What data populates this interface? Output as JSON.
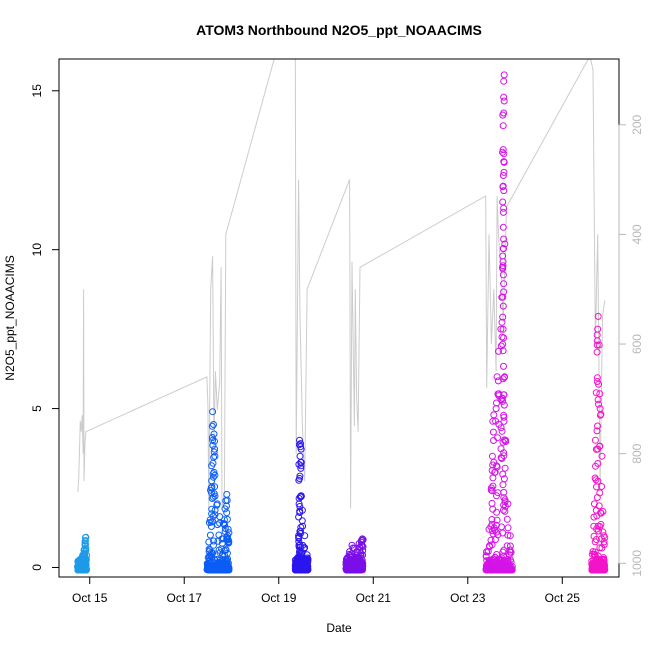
{
  "chart_data": {
    "type": "scatter",
    "title": "ATOM3 Northbound N2O5_ppt_NOAACIMS",
    "xlabel": "Date",
    "ylabel": "N2O5_ppt_NOAACIMS",
    "x_ticks": [
      {
        "day": 15,
        "label": "Oct 15"
      },
      {
        "day": 17,
        "label": "Oct 17"
      },
      {
        "day": 19,
        "label": "Oct 19"
      },
      {
        "day": 21,
        "label": "Oct 21"
      },
      {
        "day": 23,
        "label": "Oct 23"
      },
      {
        "day": 25,
        "label": "Oct 25"
      }
    ],
    "xlim": [
      14.35,
      26.2
    ],
    "ylim": [
      -0.3,
      16.0
    ],
    "y_ticks": [
      0,
      5,
      10,
      15
    ],
    "y2_ticks": [
      200,
      400,
      600,
      800,
      1000
    ],
    "y2lim": [
      1025,
      80
    ],
    "grid": false,
    "series": [
      {
        "color": "#1e9be8",
        "x_range": [
          14.75,
          14.93
        ],
        "points": [
          [
            14.76,
            0.05
          ],
          [
            14.78,
            0.1
          ],
          [
            14.8,
            0.2
          ],
          [
            14.82,
            0.15
          ],
          [
            14.84,
            0.3
          ],
          [
            14.86,
            0.4
          ],
          [
            14.88,
            0.55
          ],
          [
            14.9,
            0.7
          ],
          [
            14.91,
            0.85
          ],
          [
            14.92,
            0.95
          ],
          [
            14.8,
            0.0
          ],
          [
            14.85,
            0.25
          ]
        ]
      },
      {
        "color": "#0c5df5",
        "x_range": [
          17.48,
          17.95
        ],
        "points": [
          [
            17.5,
            0.1
          ],
          [
            17.52,
            0.8
          ],
          [
            17.55,
            1.5
          ],
          [
            17.57,
            2.5
          ],
          [
            17.58,
            3.2
          ],
          [
            17.6,
            4.0
          ],
          [
            17.62,
            4.5
          ],
          [
            17.6,
            4.9
          ],
          [
            17.63,
            4.2
          ],
          [
            17.65,
            3.5
          ],
          [
            17.7,
            2.0
          ],
          [
            17.75,
            1.6
          ],
          [
            17.85,
            1.5
          ],
          [
            17.88,
            2.1
          ],
          [
            17.9,
            2.3
          ],
          [
            17.92,
            1.0
          ],
          [
            17.8,
            0.9
          ],
          [
            17.93,
            1.2
          ]
        ]
      },
      {
        "color": "#2b16ef",
        "x_range": [
          19.35,
          19.62
        ],
        "points": [
          [
            19.4,
            0.3
          ],
          [
            19.42,
            1.0
          ],
          [
            19.43,
            2.0
          ],
          [
            19.44,
            2.8
          ],
          [
            19.45,
            3.5
          ],
          [
            19.46,
            3.8
          ],
          [
            19.44,
            4.0
          ],
          [
            19.47,
            3.2
          ],
          [
            19.5,
            1.8
          ],
          [
            19.55,
            1.0
          ],
          [
            19.6,
            0.4
          ]
        ]
      },
      {
        "color": "#7a0fe8",
        "x_range": [
          20.42,
          20.78
        ],
        "points": [
          [
            20.45,
            0.3
          ],
          [
            20.5,
            0.5
          ],
          [
            20.55,
            0.7
          ],
          [
            20.6,
            0.6
          ],
          [
            20.7,
            0.75
          ],
          [
            20.75,
            0.85
          ],
          [
            20.77,
            0.9
          ],
          [
            20.65,
            0.5
          ]
        ]
      },
      {
        "color": "#d414e6",
        "x_range": [
          23.38,
          23.95
        ],
        "points": [
          [
            23.4,
            0.5
          ],
          [
            23.45,
            1.2
          ],
          [
            23.5,
            2.5
          ],
          [
            23.52,
            3.5
          ],
          [
            23.53,
            4.6
          ],
          [
            23.55,
            4.8
          ],
          [
            23.58,
            3.0
          ],
          [
            23.6,
            5.0
          ],
          [
            23.62,
            6.0
          ],
          [
            23.65,
            6.8
          ],
          [
            23.7,
            7.5
          ],
          [
            23.72,
            8.5
          ],
          [
            23.74,
            9.4
          ],
          [
            23.74,
            9.8
          ],
          [
            23.74,
            11.5
          ],
          [
            23.75,
            12.0
          ],
          [
            23.75,
            13.15
          ],
          [
            23.75,
            13.9
          ],
          [
            23.76,
            14.3
          ],
          [
            23.76,
            14.8
          ],
          [
            23.76,
            15.3
          ],
          [
            23.77,
            15.5
          ],
          [
            23.8,
            4.0
          ],
          [
            23.85,
            2.0
          ],
          [
            23.9,
            1.0
          ]
        ]
      },
      {
        "color": "#f314c8",
        "x_range": [
          25.62,
          25.9
        ],
        "points": [
          [
            25.65,
            0.5
          ],
          [
            25.68,
            2.0
          ],
          [
            25.7,
            4.0
          ],
          [
            25.72,
            5.5
          ],
          [
            25.74,
            7.0
          ],
          [
            25.75,
            7.5
          ],
          [
            25.76,
            7.9
          ],
          [
            25.78,
            7.0
          ],
          [
            25.8,
            5.0
          ],
          [
            25.84,
            3.5
          ],
          [
            25.88,
            1.0
          ]
        ]
      }
    ],
    "secondary_line": {
      "color": "#cccccc",
      "points": [
        [
          14.75,
          870
        ],
        [
          14.77,
          840
        ],
        [
          14.8,
          740
        ],
        [
          14.82,
          760
        ],
        [
          14.84,
          730
        ],
        [
          14.86,
          800
        ],
        [
          14.87,
          500
        ],
        [
          14.88,
          850
        ],
        [
          14.9,
          780
        ],
        [
          14.92,
          760
        ],
        [
          17.48,
          660
        ],
        [
          17.5,
          710
        ],
        [
          17.52,
          900
        ],
        [
          17.56,
          500
        ],
        [
          17.6,
          440
        ],
        [
          17.63,
          780
        ],
        [
          17.66,
          650
        ],
        [
          17.7,
          720
        ],
        [
          17.75,
          670
        ],
        [
          17.78,
          460
        ],
        [
          17.8,
          900
        ],
        [
          17.85,
          870
        ],
        [
          17.88,
          400
        ],
        [
          19.0,
          50
        ],
        [
          19.35,
          50
        ],
        [
          19.37,
          800
        ],
        [
          19.42,
          300
        ],
        [
          19.45,
          550
        ],
        [
          19.5,
          750
        ],
        [
          19.55,
          850
        ],
        [
          19.6,
          500
        ],
        [
          20.5,
          300
        ],
        [
          20.52,
          900
        ],
        [
          20.55,
          450
        ],
        [
          20.6,
          750
        ],
        [
          20.62,
          500
        ],
        [
          20.65,
          700
        ],
        [
          20.68,
          760
        ],
        [
          20.72,
          460
        ],
        [
          23.38,
          330
        ],
        [
          23.4,
          680
        ],
        [
          23.45,
          400
        ],
        [
          23.5,
          600
        ],
        [
          23.55,
          500
        ],
        [
          23.6,
          650
        ],
        [
          23.62,
          330
        ],
        [
          23.65,
          400
        ],
        [
          23.72,
          490
        ],
        [
          23.75,
          560
        ],
        [
          23.82,
          350
        ],
        [
          25.55,
          80
        ],
        [
          25.6,
          80
        ],
        [
          25.65,
          100
        ],
        [
          25.7,
          600
        ],
        [
          25.75,
          400
        ],
        [
          25.8,
          860
        ],
        [
          25.85,
          550
        ],
        [
          25.9,
          520
        ]
      ]
    }
  }
}
